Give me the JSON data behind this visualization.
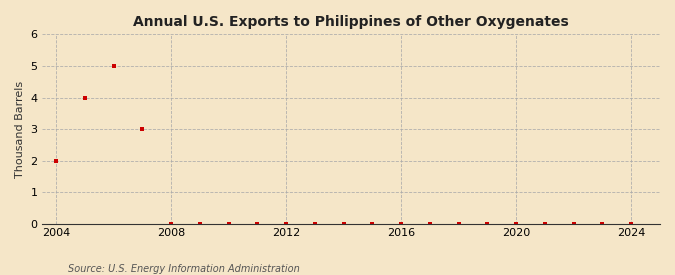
{
  "title": "Annual U.S. Exports to Philippines of Other Oxygenates",
  "ylabel": "Thousand Barrels",
  "source_text": "Source: U.S. Energy Information Administration",
  "background_color": "#f5e6c8",
  "plot_background_color": "#f5e6c8",
  "grid_color": "#aaaaaa",
  "marker_color": "#cc0000",
  "xlim": [
    2003.5,
    2025
  ],
  "ylim": [
    0,
    6
  ],
  "xticks": [
    2004,
    2008,
    2012,
    2016,
    2020,
    2024
  ],
  "yticks": [
    0,
    1,
    2,
    3,
    4,
    5,
    6
  ],
  "data_years": [
    2004,
    2005,
    2006,
    2007,
    2008,
    2009,
    2010,
    2011,
    2012,
    2013,
    2014,
    2015,
    2016,
    2017,
    2018,
    2019,
    2020,
    2021,
    2022,
    2023,
    2024
  ],
  "data_values": [
    2,
    4,
    5,
    3,
    0,
    0,
    0,
    0,
    0,
    0,
    0,
    0,
    0,
    0,
    0,
    0,
    0,
    0,
    0,
    0,
    0
  ]
}
